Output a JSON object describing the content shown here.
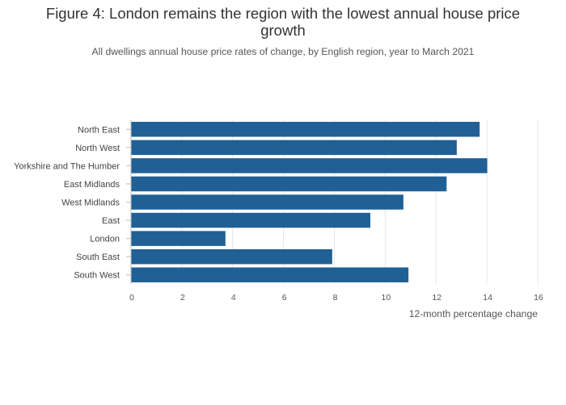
{
  "chart_data": {
    "type": "bar",
    "orientation": "horizontal",
    "title_line1": "Figure 4: London remains the region with the lowest annual house price",
    "title_line2": "growth",
    "subtitle": "All dwellings annual house price rates of change, by English region, year to March 2021",
    "xlabel": "12-month percentage change",
    "ylabel": "",
    "xlim": [
      0,
      16
    ],
    "xticks": [
      0,
      2,
      4,
      6,
      8,
      10,
      12,
      14,
      16
    ],
    "grid": true,
    "bar_color": "#206095",
    "categories": [
      "North East",
      "North West",
      "Yorkshire and The Humber",
      "East Midlands",
      "West Midlands",
      "East",
      "London",
      "South East",
      "South West"
    ],
    "values": [
      13.7,
      12.8,
      14.0,
      12.4,
      10.7,
      9.4,
      3.7,
      7.9,
      10.9
    ]
  }
}
